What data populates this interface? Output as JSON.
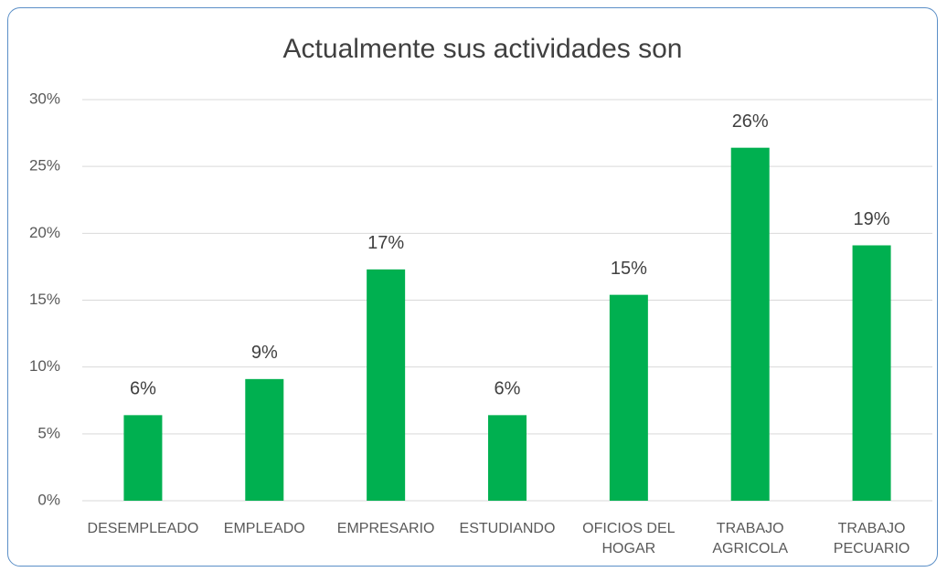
{
  "chart_data": {
    "type": "bar",
    "title": "Actualmente sus actividades son",
    "categories": [
      "DESEMPLEADO",
      "EMPLEADO",
      "EMPRESARIO",
      "ESTUDIANDO",
      "OFICIOS DEL HOGAR",
      "TRABAJO AGRICOLA",
      "TRABAJO PECUARIO"
    ],
    "values": [
      6.4,
      9.1,
      17.3,
      6.4,
      15.4,
      26.4,
      19.1
    ],
    "value_labels": [
      "6%",
      "9%",
      "17%",
      "6%",
      "15%",
      "26%",
      "19%"
    ],
    "color": "#00b050",
    "ylim": [
      0,
      30
    ],
    "yticks": [
      {
        "value": 0,
        "label": "0%"
      },
      {
        "value": 5,
        "label": "5%"
      },
      {
        "value": 10,
        "label": "10%"
      },
      {
        "value": 15,
        "label": "15%"
      },
      {
        "value": 20,
        "label": "20%"
      },
      {
        "value": 25,
        "label": "25%"
      },
      {
        "value": 30,
        "label": "30%"
      }
    ],
    "grid": true
  }
}
